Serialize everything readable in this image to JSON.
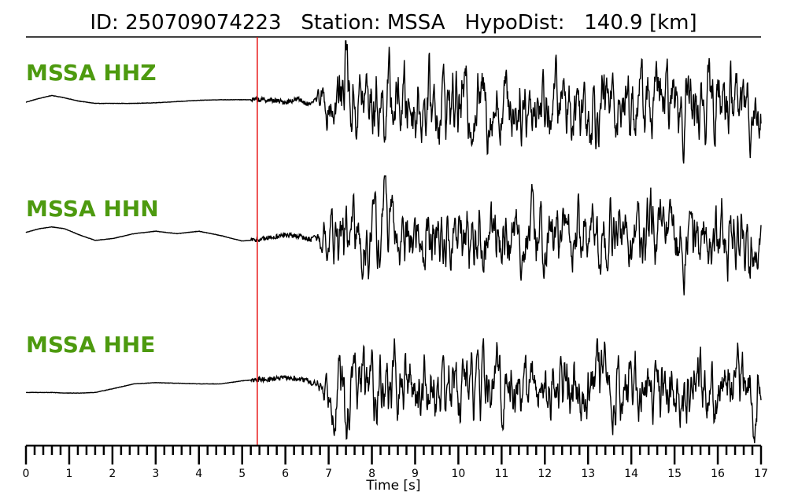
{
  "header": {
    "id_label": "ID:",
    "id_value": "250709074223",
    "station_label": "Station:",
    "station_value": "MSSA",
    "hypodist_label": "HypoDist:",
    "hypodist_value": "140.9",
    "hypodist_unit": "[km]"
  },
  "colors": {
    "channel_label": "#4d9a0f",
    "trace": "#000000",
    "pick_line": "#e8191a",
    "axis": "#000000"
  },
  "chart_data": {
    "type": "line",
    "title": "ID: 250709074223   Station: MSSA   HypoDist:   140.9 [km]",
    "xlabel": "Time [s]",
    "xlim": [
      0,
      17
    ],
    "x_major_ticks": [
      0,
      1,
      2,
      3,
      4,
      5,
      6,
      7,
      8,
      9,
      10,
      11,
      12,
      13,
      14,
      15,
      16,
      17
    ],
    "x_minor_step": 0.2,
    "pick_time": 5.35,
    "series": [
      {
        "name": "MSSA HHZ",
        "channel": "HHZ",
        "waveform": {
          "t": [
            0,
            0.3,
            0.6,
            0.9,
            1.2,
            1.6,
            2.0,
            2.5,
            3.0,
            3.5,
            4.0,
            4.5,
            5.0,
            5.35,
            5.7,
            6.0,
            6.3,
            6.6
          ],
          "a": [
            0.0,
            0.06,
            0.11,
            0.07,
            0.02,
            -0.02,
            -0.02,
            -0.02,
            -0.01,
            0.01,
            0.03,
            0.04,
            0.04,
            0.04,
            0.03,
            0.0,
            0.05,
            -0.06
          ],
          "onset_time": 6.6,
          "coda_amp": 0.55,
          "peak_time": 7.4,
          "peak_amp": 1.0
        }
      },
      {
        "name": "MSSA HHN",
        "channel": "HHN",
        "waveform": {
          "t": [
            0,
            0.3,
            0.6,
            0.9,
            1.2,
            1.6,
            2.0,
            2.5,
            3.0,
            3.5,
            4.0,
            4.5,
            5.0,
            5.35,
            5.7,
            6.0,
            6.3,
            6.6
          ],
          "a": [
            0.08,
            0.14,
            0.17,
            0.14,
            0.05,
            -0.05,
            -0.02,
            0.06,
            0.1,
            0.06,
            0.1,
            0.03,
            -0.06,
            -0.04,
            0.0,
            0.04,
            0.02,
            -0.04
          ],
          "onset_time": 6.6,
          "coda_amp": 0.5,
          "peak_time": 8.3,
          "peak_amp": 0.95
        }
      },
      {
        "name": "MSSA HHE",
        "channel": "HHE",
        "waveform": {
          "t": [
            0,
            0.3,
            0.6,
            0.9,
            1.2,
            1.6,
            2.0,
            2.5,
            3.0,
            3.5,
            4.0,
            4.5,
            5.0,
            5.35,
            5.7,
            6.0,
            6.3,
            6.6
          ],
          "a": [
            -0.12,
            -0.12,
            -0.12,
            -0.13,
            -0.13,
            -0.12,
            -0.06,
            0.02,
            0.04,
            0.03,
            0.02,
            0.02,
            0.07,
            0.09,
            0.1,
            0.12,
            0.1,
            0.06
          ],
          "onset_time": 6.6,
          "coda_amp": 0.5,
          "peak_time": 7.4,
          "peak_amp": -1.0
        }
      }
    ]
  }
}
